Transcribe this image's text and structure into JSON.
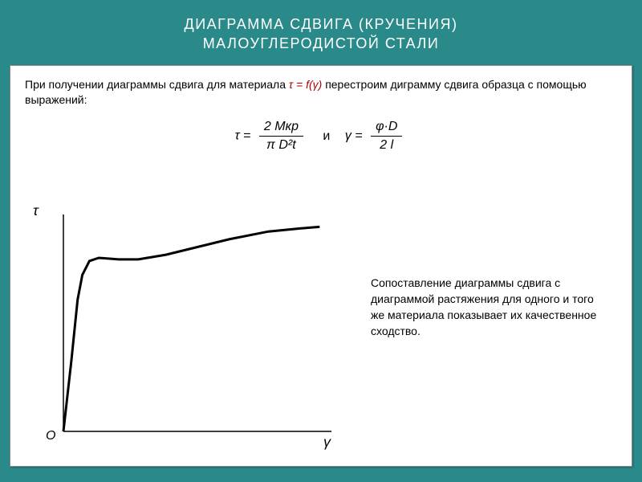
{
  "header": {
    "line1": "ДИАГРАММА СДВИГА (КРУЧЕНИЯ)",
    "line2": "МАЛОУГЛЕРОДИСТОЙ СТАЛИ"
  },
  "intro": {
    "part1": "При получении диаграммы сдвига для материала ",
    "highlight": "τ = f(γ)",
    "part2": "    перестроим диграмму сдвига образца с помощью выражений:"
  },
  "formulas": {
    "tau_lhs": "τ  =",
    "tau_num": "2 Mкр",
    "tau_den": "π D²t",
    "and": "и",
    "gamma_lhs": "γ =",
    "gamma_num": "φ·D",
    "gamma_den": "2 l"
  },
  "axis": {
    "y": "τ",
    "x": "γ",
    "origin": "O"
  },
  "side_text": "Сопоставление диаграммы сдвига с диаграммой растяжения для одного и того же материала показывает их качественное сходство.",
  "chart": {
    "type": "line",
    "background_color": "#ffffff",
    "axis_color": "#000000",
    "line_color": "#000000",
    "line_width": 3,
    "axis_width": 1.5,
    "xrange": [
      0,
      340
    ],
    "yrange": [
      0,
      280
    ],
    "curve_points": [
      [
        0,
        0
      ],
      [
        10,
        90
      ],
      [
        18,
        170
      ],
      [
        24,
        202
      ],
      [
        33,
        220
      ],
      [
        45,
        224
      ],
      [
        70,
        222
      ],
      [
        95,
        222
      ],
      [
        130,
        228
      ],
      [
        170,
        238
      ],
      [
        210,
        248
      ],
      [
        260,
        258
      ],
      [
        300,
        262
      ],
      [
        325,
        264
      ]
    ]
  },
  "colors": {
    "outer_bg": "#2a8a8a",
    "panel_bg": "#ffffff",
    "title_text": "#ffffff",
    "body_text": "#000000",
    "highlight_text": "#b00000"
  },
  "fonts": {
    "title_size_pt": 18,
    "body_size_pt": 14,
    "axis_label_size_pt": 18
  }
}
